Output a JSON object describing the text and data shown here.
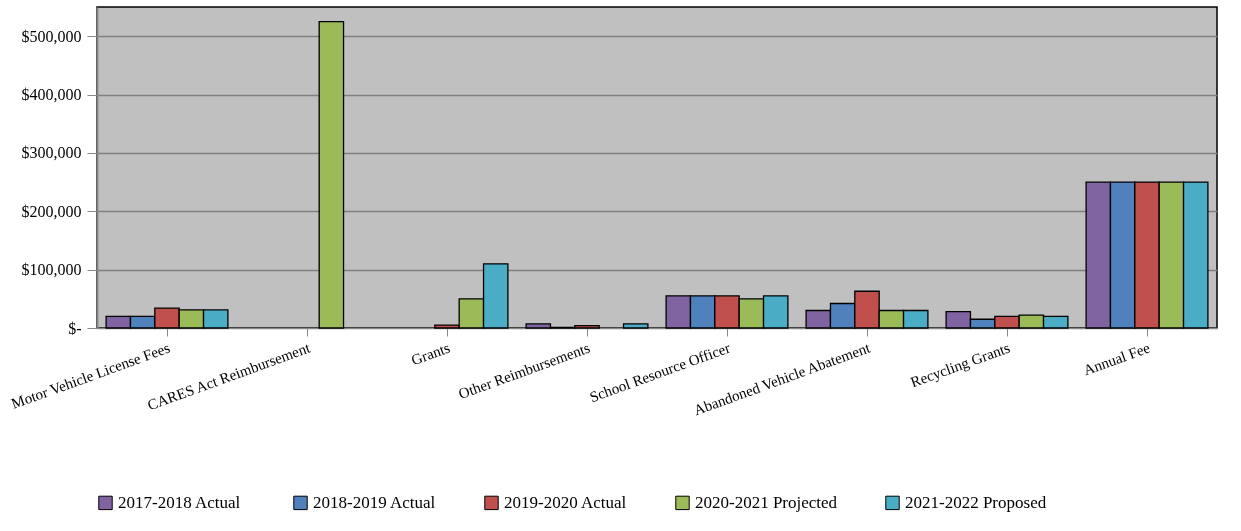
{
  "chart_data": {
    "type": "bar",
    "categories": [
      "Motor Vehicle License Fees",
      "CARES Act Reimbursement",
      "Grants",
      "Other Reimbursements",
      "School Resource Officer",
      "Abandoned Vehicle Abatement",
      "Recycling Grants",
      "Annual Fee"
    ],
    "series": [
      {
        "name": "2017-2018  Actual",
        "color": "#8064a2",
        "values": [
          20000,
          null,
          null,
          7000,
          55000,
          30000,
          28000,
          250000
        ]
      },
      {
        "name": "2018-2019 Actual",
        "color": "#4f81bd",
        "values": [
          20000,
          null,
          null,
          1000,
          55000,
          42000,
          15000,
          250000
        ]
      },
      {
        "name": "2019-2020 Actual",
        "color": "#c0504d",
        "values": [
          34000,
          null,
          5000,
          4000,
          55000,
          63000,
          20000,
          250000
        ]
      },
      {
        "name": "2020-2021 Projected",
        "color": "#9bbb59",
        "values": [
          31000,
          525000,
          50000,
          null,
          50000,
          30000,
          22000,
          250000
        ]
      },
      {
        "name": "2021-2022 Proposed",
        "color": "#4bacc6",
        "values": [
          31000,
          null,
          110000,
          7000,
          55000,
          30000,
          20000,
          250000
        ]
      }
    ],
    "ylim": [
      0,
      550000
    ],
    "yticks": [
      {
        "value": 0,
        "label": "$-"
      },
      {
        "value": 100000,
        "label": "$100,000"
      },
      {
        "value": 200000,
        "label": "$200,000"
      },
      {
        "value": 300000,
        "label": "$300,000"
      },
      {
        "value": 400000,
        "label": "$400,000"
      },
      {
        "value": 500000,
        "label": "$500,000"
      }
    ],
    "grid": "y",
    "legend": "bottom"
  }
}
